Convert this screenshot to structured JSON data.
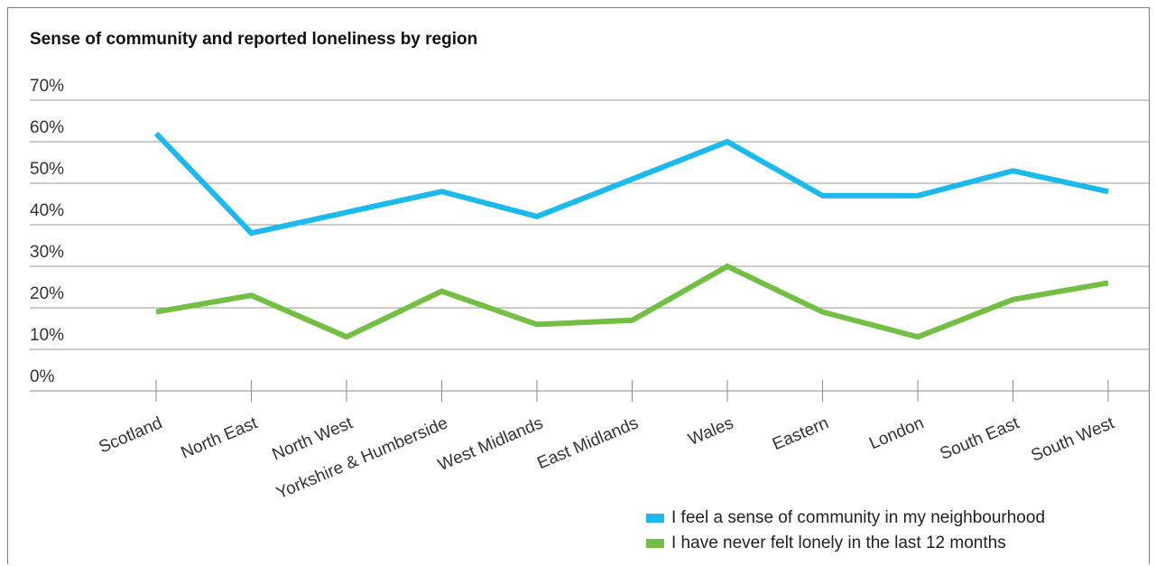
{
  "chart_data": {
    "type": "line",
    "title": "Sense of community and reported loneliness by region",
    "categories": [
      "Scotland",
      "North East",
      "North West",
      "Yorkshire & Humberside",
      "West Midlands",
      "East Midlands",
      "Wales",
      "Eastern",
      "London",
      "South East",
      "South West"
    ],
    "yticks": [
      "0%",
      "10%",
      "20%",
      "30%",
      "40%",
      "50%",
      "60%",
      "70%"
    ],
    "ylim": [
      0,
      70
    ],
    "grid": true,
    "legend_position": "bottom-right",
    "series": [
      {
        "name": "I feel a sense of community in my neighbourhood",
        "color": "#1cb9ec",
        "values": [
          62,
          38,
          43,
          48,
          42,
          51,
          60,
          47,
          47,
          53,
          48
        ]
      },
      {
        "name": "I have never felt lonely in the last 12 months",
        "color": "#72bf44",
        "values": [
          19,
          23,
          13,
          24,
          16,
          17,
          30,
          19,
          13,
          22,
          26
        ]
      }
    ]
  }
}
